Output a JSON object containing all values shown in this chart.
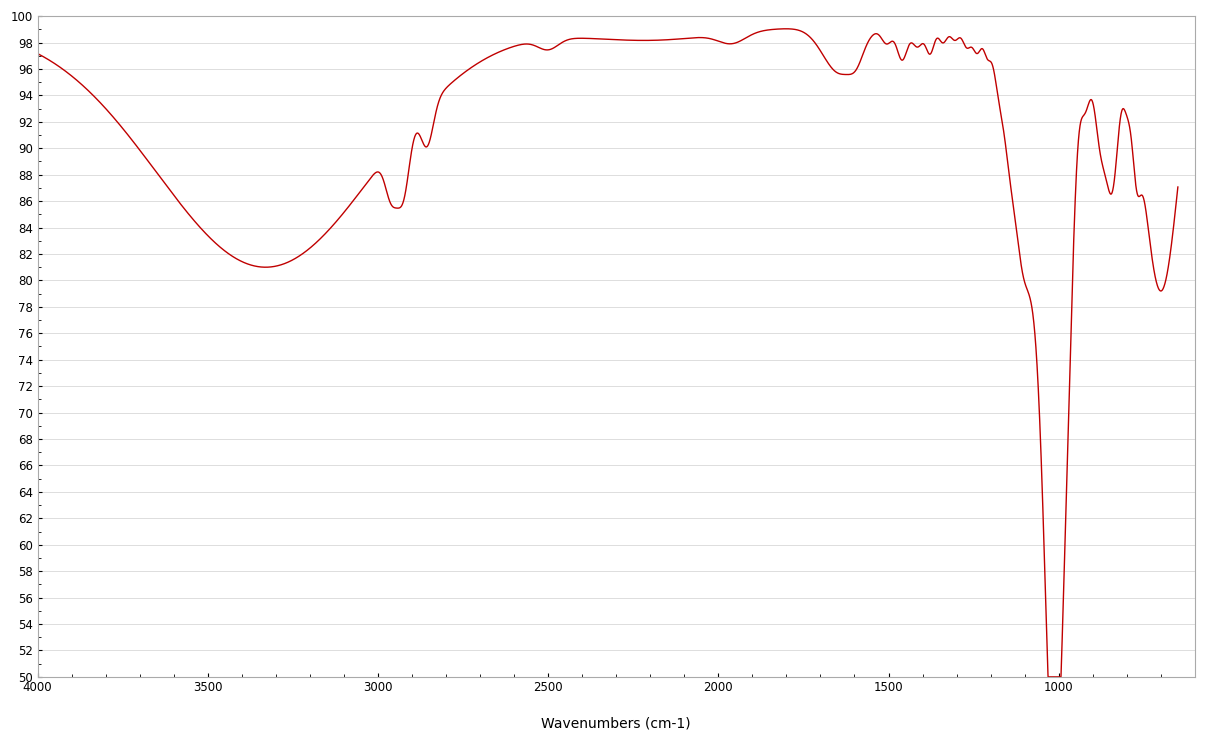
{
  "xlabel": "Wavenumbers (cm-1)",
  "ylabel": "",
  "xlim": [
    4000,
    600
  ],
  "ylim": [
    50,
    100
  ],
  "xticks": [
    4000,
    3500,
    3000,
    2500,
    2000,
    1500,
    1000
  ],
  "yticks": [
    50,
    52,
    54,
    56,
    58,
    60,
    62,
    64,
    66,
    68,
    70,
    72,
    74,
    76,
    78,
    80,
    82,
    84,
    86,
    88,
    90,
    92,
    94,
    96,
    98,
    100
  ],
  "line_color": "#c00000",
  "line_width": 1.0,
  "background_color": "#ffffff",
  "grid_color": "#d0d0d0"
}
